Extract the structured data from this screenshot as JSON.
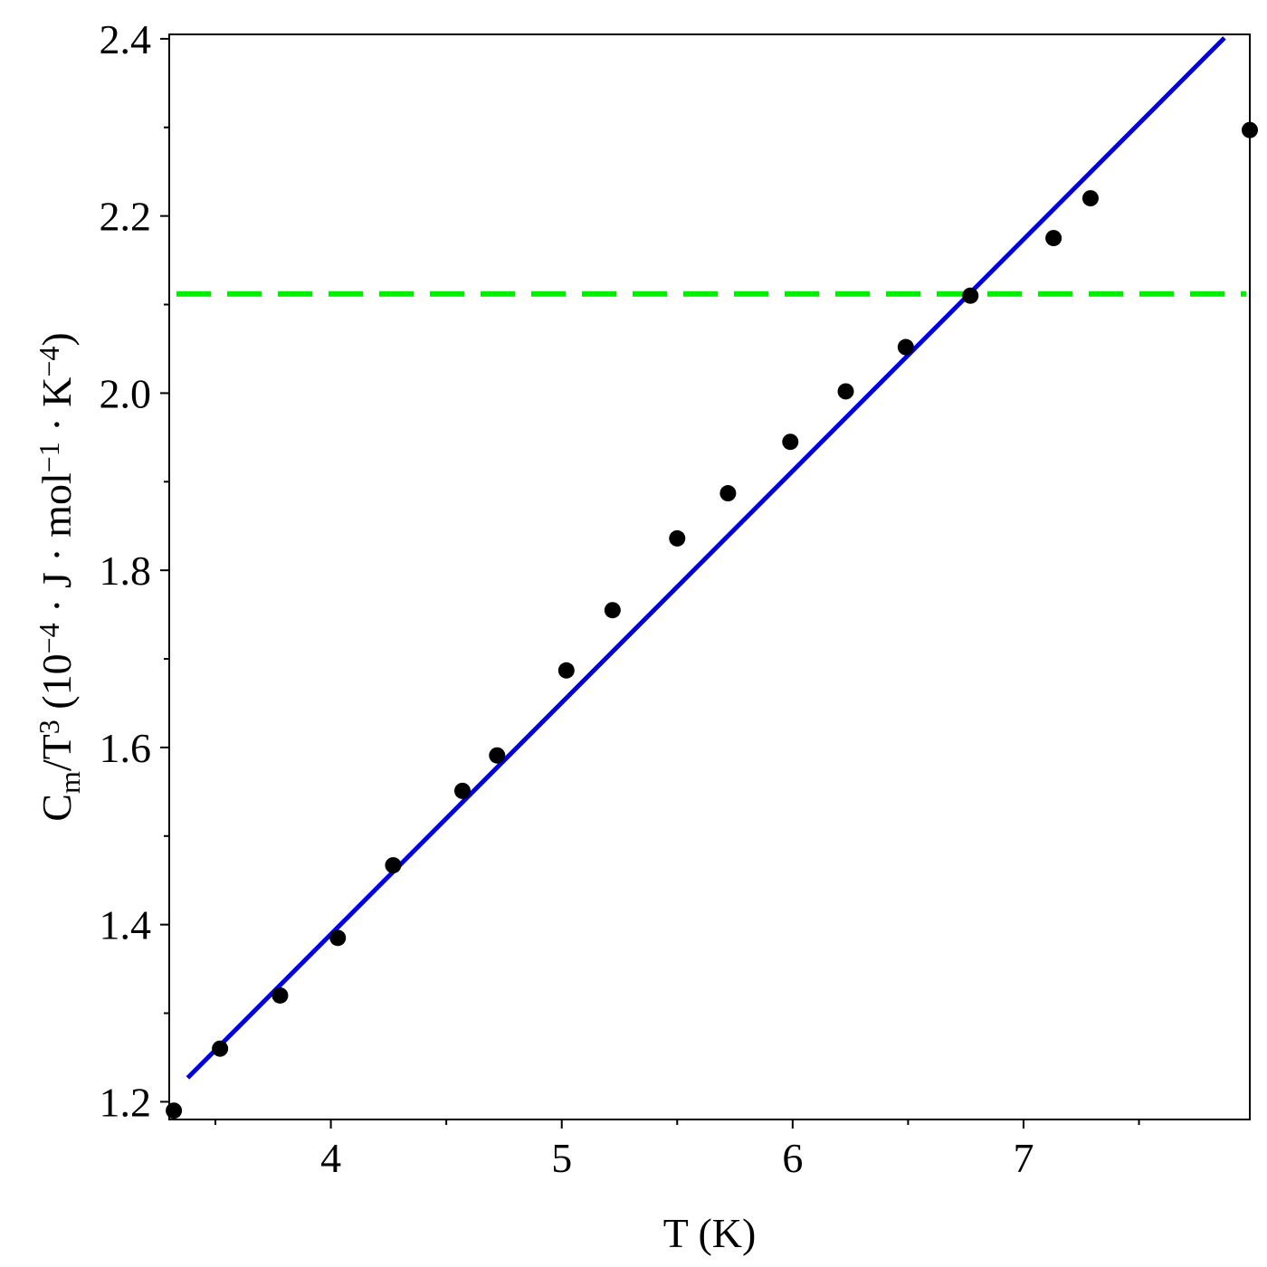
{
  "chart_data": {
    "type": "scatter",
    "title": "",
    "xlabel": "T (K)",
    "ylabel": {
      "parts": [
        {
          "text": "C"
        },
        {
          "text": "m",
          "sub": true
        },
        {
          "text": "/T"
        },
        {
          "text": "3",
          "sup": true
        },
        {
          "text": " (10"
        },
        {
          "text": "−4",
          "sup": true
        },
        {
          "text": " · J · mol"
        },
        {
          "text": "−1",
          "sup": true
        },
        {
          "text": " · K"
        },
        {
          "text": "−4",
          "sup": true
        },
        {
          "text": ")"
        }
      ]
    },
    "xlim": [
      3.3,
      7.98
    ],
    "ylim": [
      1.18,
      2.405
    ],
    "x_ticks_major": [
      4,
      5,
      6,
      7
    ],
    "x_tick_labels": [
      "4",
      "5",
      "6",
      "7"
    ],
    "x_ticks_minor": [
      3.5,
      4.5,
      5.5,
      6.5,
      7.5
    ],
    "y_ticks_major": [
      1.2,
      1.4,
      1.6,
      1.8,
      2.0,
      2.2,
      2.4
    ],
    "y_tick_labels": [
      "1.2",
      "1.4",
      "1.6",
      "1.8",
      "2.0",
      "2.2",
      "2.4"
    ],
    "y_ticks_minor": [
      1.3,
      1.5,
      1.7,
      1.9,
      2.1,
      2.3
    ],
    "grid": false,
    "series": [
      {
        "kind": "scatter",
        "color": "#000000",
        "x": [
          3.32,
          3.52,
          3.78,
          4.03,
          4.27,
          4.57,
          4.72,
          5.02,
          5.22,
          5.5,
          5.72,
          5.99,
          6.23,
          6.49,
          6.77,
          7.13,
          7.29,
          7.98
        ],
        "y": [
          1.19,
          1.26,
          1.32,
          1.385,
          1.467,
          1.551,
          1.591,
          1.687,
          1.755,
          1.836,
          1.887,
          1.945,
          2.002,
          2.052,
          2.11,
          2.175,
          2.22,
          2.297
        ]
      },
      {
        "kind": "line",
        "color": "#0000dd",
        "style": "solid",
        "x": [
          3.38,
          7.87
        ],
        "y": [
          1.227,
          2.401
        ]
      },
      {
        "kind": "hline",
        "color": "#00ee00",
        "style": "dashed",
        "y": 2.112
      }
    ]
  }
}
